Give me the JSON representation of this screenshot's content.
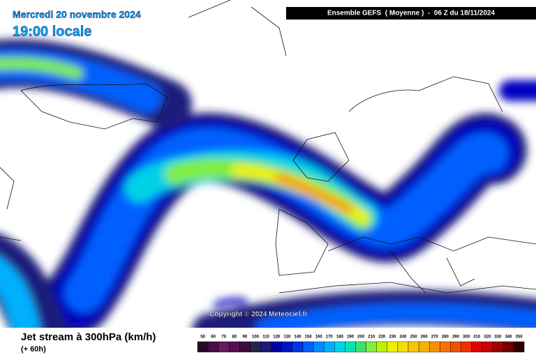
{
  "header": {
    "date": "Mercredi 20 novembre 2024",
    "time": "19:00 locale",
    "model": "Ensemble GEFS  ( Moyenne )  -  06 Z du 18/11/2024"
  },
  "copyright": "Copyright © 2024 Meteociel.fr",
  "footer": {
    "title": "Jet stream à 300hPa (km/h)",
    "lead": "(+ 60h)"
  },
  "legend": {
    "ticks": [
      50,
      60,
      70,
      80,
      90,
      100,
      110,
      120,
      130,
      140,
      150,
      160,
      170,
      180,
      190,
      200,
      210,
      220,
      230,
      240,
      250,
      260,
      270,
      280,
      290,
      300,
      310,
      320,
      330,
      340,
      350
    ],
    "colors": [
      "#2a0828",
      "#4a0c44",
      "#661a5e",
      "#561050",
      "#3a0c3a",
      "#24244e",
      "#1a1a7a",
      "#0000a0",
      "#0014c4",
      "#0034e6",
      "#0060ff",
      "#008cff",
      "#00b0ff",
      "#00d2e6",
      "#00e4b4",
      "#3ce070",
      "#80ee3c",
      "#c0f000",
      "#eef200",
      "#f4e000",
      "#f8c800",
      "#f8b000",
      "#f89000",
      "#f87000",
      "#f05000",
      "#f03000",
      "#e00000",
      "#c80000",
      "#a00000",
      "#700000",
      "#300000"
    ]
  }
}
